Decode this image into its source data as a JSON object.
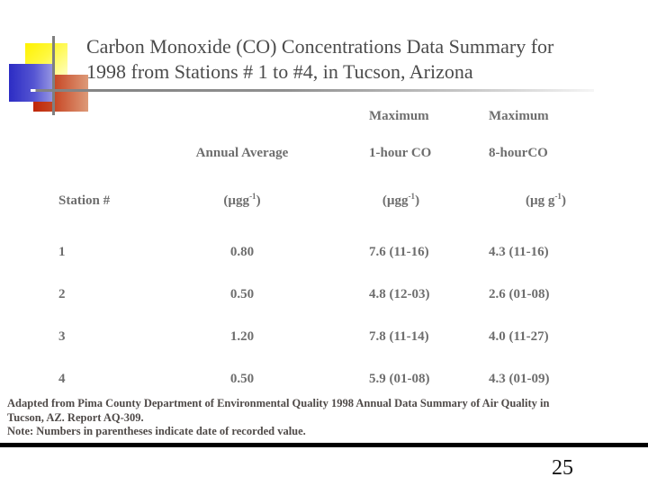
{
  "slide": {
    "title": {
      "line1": "Carbon Monoxide (CO) Concentrations Data Summary for",
      "line2": "1998 from Stations # 1 to #4, in Tucson, Arizona"
    },
    "page_number": "25"
  },
  "table": {
    "columns": {
      "station": "Station #",
      "annual_average": "Annual Average",
      "max_1hr_title": "Maximum",
      "max_1hr_sub": "1-hour CO",
      "max_8hr_title": "Maximum",
      "max_8hr_sub": "8-hourCO"
    },
    "units": {
      "annual_average": {
        "pre": "(µgg",
        "sup": "-1",
        "post": ")"
      },
      "max_1hr": {
        "pre": "(µgg",
        "sup": "-1",
        "post": ")"
      },
      "max_8hr": {
        "pre": "(µg g",
        "sup": "-1",
        "post": ")"
      }
    },
    "rows": [
      {
        "station": "1",
        "annual_avg": "0.80",
        "max_1hr": "7.6 (11-16)",
        "max_8hr": "4.3 (11-16)"
      },
      {
        "station": "2",
        "annual_avg": "0.50",
        "max_1hr": "4.8 (12-03)",
        "max_8hr": "2.6 (01-08)"
      },
      {
        "station": "3",
        "annual_avg": "1.20",
        "max_1hr": "7.8 (11-14)",
        "max_8hr": "4.0 (11-27)"
      },
      {
        "station": "4",
        "annual_avg": "0.50",
        "max_1hr": "5.9 (01-08)",
        "max_8hr": "4.3 (01-09)"
      }
    ]
  },
  "footer": {
    "source_line1": "Adapted from Pima County Department of Environmental Quality 1998 Annual Data Summary of Air Quality in",
    "source_line2": "Tucson, AZ. Report AQ-309.",
    "note": "Note: Numbers in parentheses indicate date of recorded value."
  },
  "colors": {
    "title_text": "#4b4b4b",
    "table_text": "#6e6e6e",
    "footer_text": "#4f4a48",
    "page_number_text": "#161616",
    "logo_yellow": "#fff200",
    "logo_blue": "#2c2cc4",
    "logo_red": "#bf2608",
    "rule_gray": "#7f7f7f",
    "bottom_bar": "#000000"
  }
}
